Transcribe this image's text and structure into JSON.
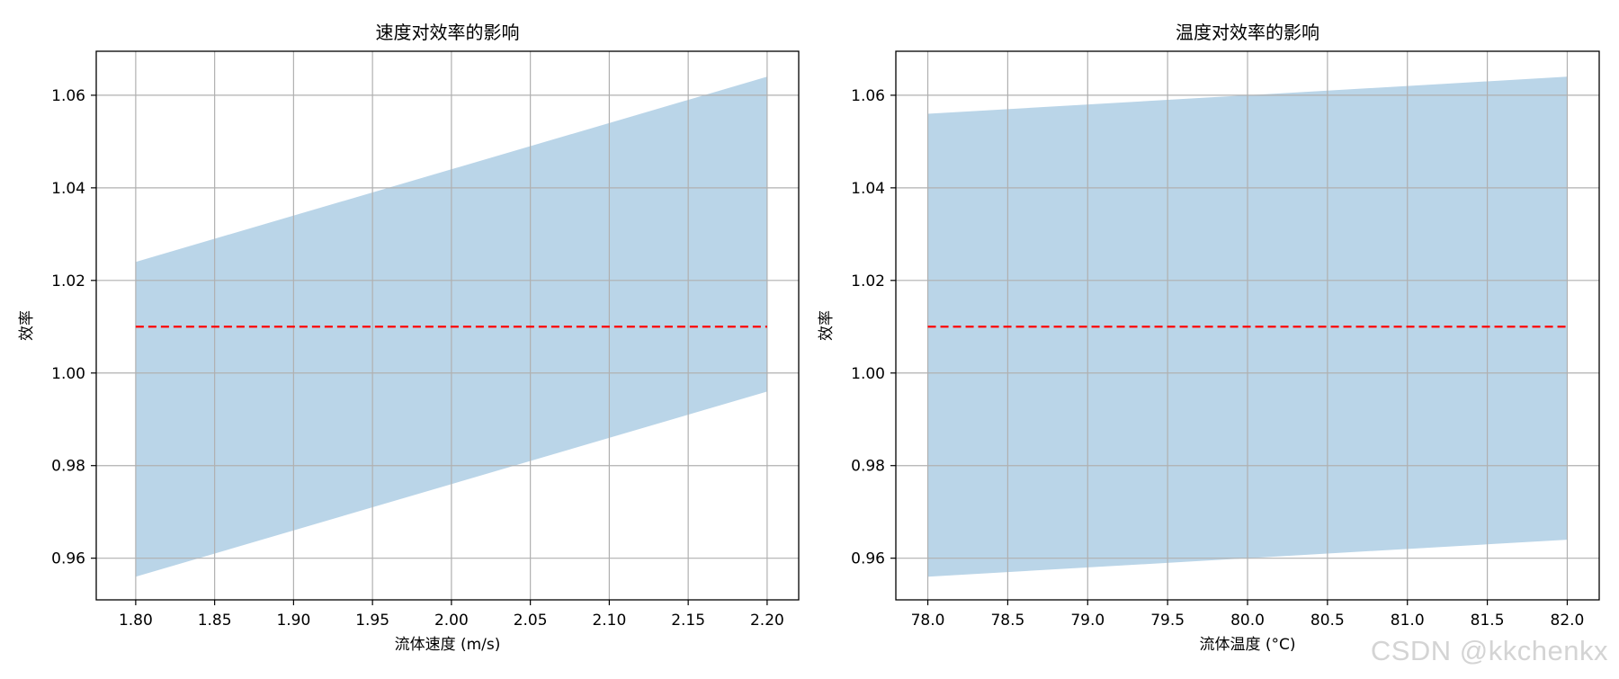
{
  "watermark": "CSDN @kkchenkx",
  "colors": {
    "band": "#bad5e8",
    "line": "#ff0000",
    "grid": "#b0b0b0",
    "frame": "#000000"
  },
  "chart_data": [
    {
      "type": "area",
      "title": "速度对效率的影响",
      "xlabel": "流体速度 (m/s)",
      "ylabel": "效率",
      "x": [
        1.8,
        2.2
      ],
      "series": [
        {
          "role": "band_upper",
          "values": [
            1.024,
            1.064
          ]
        },
        {
          "role": "band_lower",
          "values": [
            0.956,
            0.996
          ]
        },
        {
          "role": "reference_line",
          "style": "dashed",
          "values": [
            1.01,
            1.01
          ]
        }
      ],
      "xlim": [
        1.775,
        2.22
      ],
      "ylim": [
        0.951,
        1.0695
      ],
      "xticks": [
        1.8,
        1.85,
        1.9,
        1.95,
        2.0,
        2.05,
        2.1,
        2.15,
        2.2
      ],
      "xtick_labels": [
        "1.80",
        "1.85",
        "1.90",
        "1.95",
        "2.00",
        "2.05",
        "2.10",
        "2.15",
        "2.20"
      ],
      "yticks": [
        0.96,
        0.98,
        1.0,
        1.02,
        1.04,
        1.06
      ],
      "ytick_labels": [
        "0.96",
        "0.98",
        "1.00",
        "1.02",
        "1.04",
        "1.06"
      ],
      "grid": true
    },
    {
      "type": "area",
      "title": "温度对效率的影响",
      "xlabel": "流体温度 (°C)",
      "ylabel": "效率",
      "x": [
        78.0,
        82.0
      ],
      "series": [
        {
          "role": "band_upper",
          "values": [
            1.056,
            1.064
          ]
        },
        {
          "role": "band_lower",
          "values": [
            0.956,
            0.964
          ]
        },
        {
          "role": "reference_line",
          "style": "dashed",
          "values": [
            1.01,
            1.01
          ]
        }
      ],
      "xlim": [
        77.8,
        82.2
      ],
      "ylim": [
        0.951,
        1.0695
      ],
      "xticks": [
        78.0,
        78.5,
        79.0,
        79.5,
        80.0,
        80.5,
        81.0,
        81.5,
        82.0
      ],
      "xtick_labels": [
        "78.0",
        "78.5",
        "79.0",
        "79.5",
        "80.0",
        "80.5",
        "81.0",
        "81.5",
        "82.0"
      ],
      "yticks": [
        0.96,
        0.98,
        1.0,
        1.02,
        1.04,
        1.06
      ],
      "ytick_labels": [
        "0.96",
        "0.98",
        "1.00",
        "1.02",
        "1.04",
        "1.06"
      ],
      "grid": true
    }
  ]
}
